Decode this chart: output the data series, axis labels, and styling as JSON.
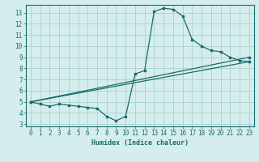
{
  "xlabel": "Humidex (Indice chaleur)",
  "background_color": "#d5eeed",
  "grid_color": "#aed4d4",
  "line_color": "#1a6b6b",
  "xlim": [
    -0.5,
    23.5
  ],
  "ylim": [
    2.8,
    13.7
  ],
  "xticks": [
    0,
    1,
    2,
    3,
    4,
    5,
    6,
    7,
    8,
    9,
    10,
    11,
    12,
    13,
    14,
    15,
    16,
    17,
    18,
    19,
    20,
    21,
    22,
    23
  ],
  "yticks": [
    3,
    4,
    5,
    6,
    7,
    8,
    9,
    10,
    11,
    12,
    13
  ],
  "series": [
    {
      "x": [
        0,
        1,
        2,
        3,
        4,
        5,
        6,
        7,
        8,
        9,
        10,
        11,
        12,
        13,
        14,
        15,
        16,
        17,
        18,
        19,
        20,
        21,
        22,
        23
      ],
      "y": [
        5.0,
        4.8,
        4.6,
        4.8,
        4.7,
        4.6,
        4.5,
        4.4,
        3.7,
        3.3,
        3.7,
        7.5,
        7.8,
        13.1,
        13.4,
        13.3,
        12.7,
        10.6,
        10.0,
        9.6,
        9.5,
        9.0,
        8.7,
        8.6
      ]
    },
    {
      "x": [
        0,
        23
      ],
      "y": [
        5.0,
        9.0
      ]
    },
    {
      "x": [
        0,
        23
      ],
      "y": [
        5.0,
        8.6
      ]
    }
  ]
}
